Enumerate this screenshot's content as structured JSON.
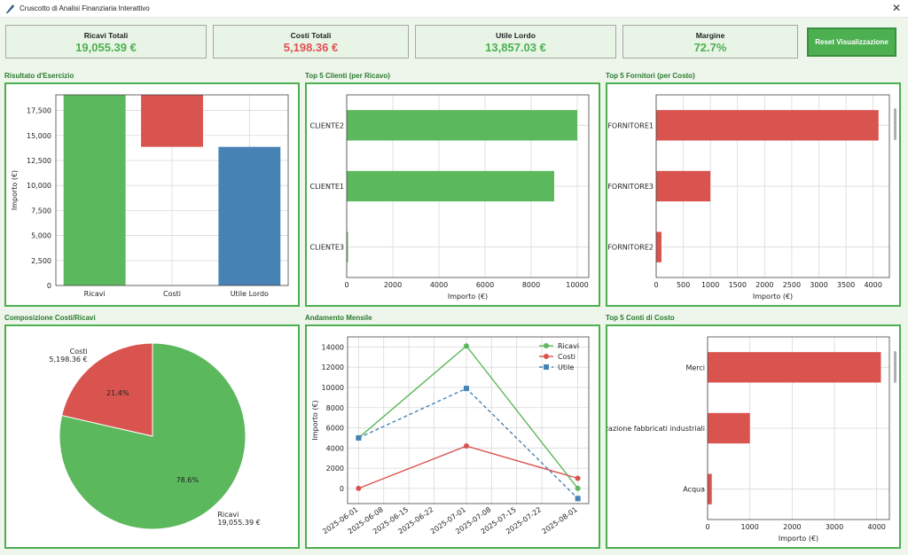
{
  "window": {
    "title": "Cruscotto di Analisi Finanziaria Interattivo"
  },
  "kpis": [
    {
      "label": "Ricavi Totali",
      "value": "19,055.39 €",
      "color": "#4caf50"
    },
    {
      "label": "Costi Totali",
      "value": "5,198.36 €",
      "color": "#e05050"
    },
    {
      "label": "Utile Lordo",
      "value": "13,857.03 €",
      "color": "#4caf50"
    },
    {
      "label": "Margine",
      "value": "72.7%",
      "color": "#4caf50"
    }
  ],
  "reset_button": "Reset Visualizzazione",
  "panels": {
    "esercizio": "Risultato d'Esercizio",
    "clienti": "Top 5 Clienti (per Ricavo)",
    "fornitori": "Top 5 Fornitori (per Costo)",
    "composizione": "Composizione Costi/Ricavi",
    "andamento": "Andamento Mensile",
    "conti": "Top 5 Conti di Costo"
  },
  "chart_data": [
    {
      "type": "bar",
      "title": "Risultato d'Esercizio",
      "ylabel": "Importo (€)",
      "xlabel": "",
      "categories": [
        "Ricavi",
        "Costi",
        "Utile Lordo"
      ],
      "values": [
        19055.39,
        5198.36,
        13857.03
      ],
      "bar_ranges": [
        [
          0,
          19055.39
        ],
        [
          13857.03,
          19055.39
        ],
        [
          0,
          13857.03
        ]
      ],
      "colors": [
        "#5cb85c",
        "#d9534f",
        "#4682b4"
      ],
      "yticks": [
        0,
        2500,
        5000,
        7500,
        10000,
        12500,
        15000,
        17500
      ],
      "ytick_labels": [
        "0",
        "2,500",
        "5,000",
        "7,500",
        "10,000",
        "12,500",
        "15,000",
        "17,500"
      ],
      "ylim": [
        0,
        19055.39
      ],
      "grid": true
    },
    {
      "type": "bar",
      "orientation": "horizontal",
      "title": "Top 5 Clienti (per Ricavo)",
      "xlabel": "Importo (€)",
      "categories": [
        "CLIENTE2",
        "CLIENTE1",
        "CLIENTE3"
      ],
      "values": [
        10000,
        9000,
        55
      ],
      "color": "#5cb85c",
      "xticks": [
        0,
        2000,
        4000,
        6000,
        8000,
        10000
      ],
      "xlim": [
        0,
        10500
      ],
      "grid": true
    },
    {
      "type": "bar",
      "orientation": "horizontal",
      "title": "Top 5 Fornitori (per Costo)",
      "xlabel": "Importo (€)",
      "categories": [
        "FORNITORE1",
        "FORNITORE3",
        "FORNITORE2"
      ],
      "values": [
        4100,
        1000,
        98.36
      ],
      "color": "#d9534f",
      "xticks": [
        0,
        500,
        1000,
        1500,
        2000,
        2500,
        3000,
        3500,
        4000
      ],
      "xlim": [
        0,
        4300
      ],
      "grid": true
    },
    {
      "type": "pie",
      "title": "Composizione Costi/Ricavi",
      "slices": [
        {
          "label": "Costi",
          "sublabel": "5,198.36 €",
          "value": 5198.36,
          "pct": "21.4%",
          "color": "#d9534f"
        },
        {
          "label": "Ricavi",
          "sublabel": "19,055.39 €",
          "value": 19055.39,
          "pct": "78.6%",
          "color": "#5cb85c"
        }
      ]
    },
    {
      "type": "line",
      "title": "Andamento Mensile",
      "ylabel": "Importo (€)",
      "x": [
        "2025-06-01",
        "2025-07-01",
        "2025-08-01"
      ],
      "xticks": [
        "2025-06-01",
        "2025-06-08",
        "2025-06-15",
        "2025-06-22",
        "2025-07-01",
        "2025-07-08",
        "2025-07-15",
        "2025-07-22",
        "2025-08-01"
      ],
      "yticks": [
        0,
        2000,
        4000,
        6000,
        8000,
        10000,
        12000,
        14000
      ],
      "ylim": [
        -1500,
        15000
      ],
      "series": [
        {
          "name": "Ricavi",
          "values": [
            5000,
            14100,
            0
          ],
          "color": "#5cb85c",
          "marker": "circle",
          "dash": "solid"
        },
        {
          "name": "Costi",
          "values": [
            0,
            4200,
            1000
          ],
          "color": "#d9534f",
          "marker": "circle",
          "dash": "solid"
        },
        {
          "name": "Utile",
          "values": [
            5000,
            9900,
            -1000
          ],
          "color": "#4682b4",
          "marker": "square",
          "dash": "dashed"
        }
      ],
      "legend": "top-right",
      "grid": true
    },
    {
      "type": "bar",
      "orientation": "horizontal",
      "title": "Top 5 Conti di Costo",
      "xlabel": "Importo (€)",
      "categories": [
        "Merci",
        "zazione fabbricati industriali",
        "Acqua"
      ],
      "values": [
        4100,
        1000,
        98.36
      ],
      "color": "#d9534f",
      "xticks": [
        0,
        1000,
        2000,
        3000,
        4000
      ],
      "xlim": [
        0,
        4300
      ],
      "grid": true
    }
  ]
}
